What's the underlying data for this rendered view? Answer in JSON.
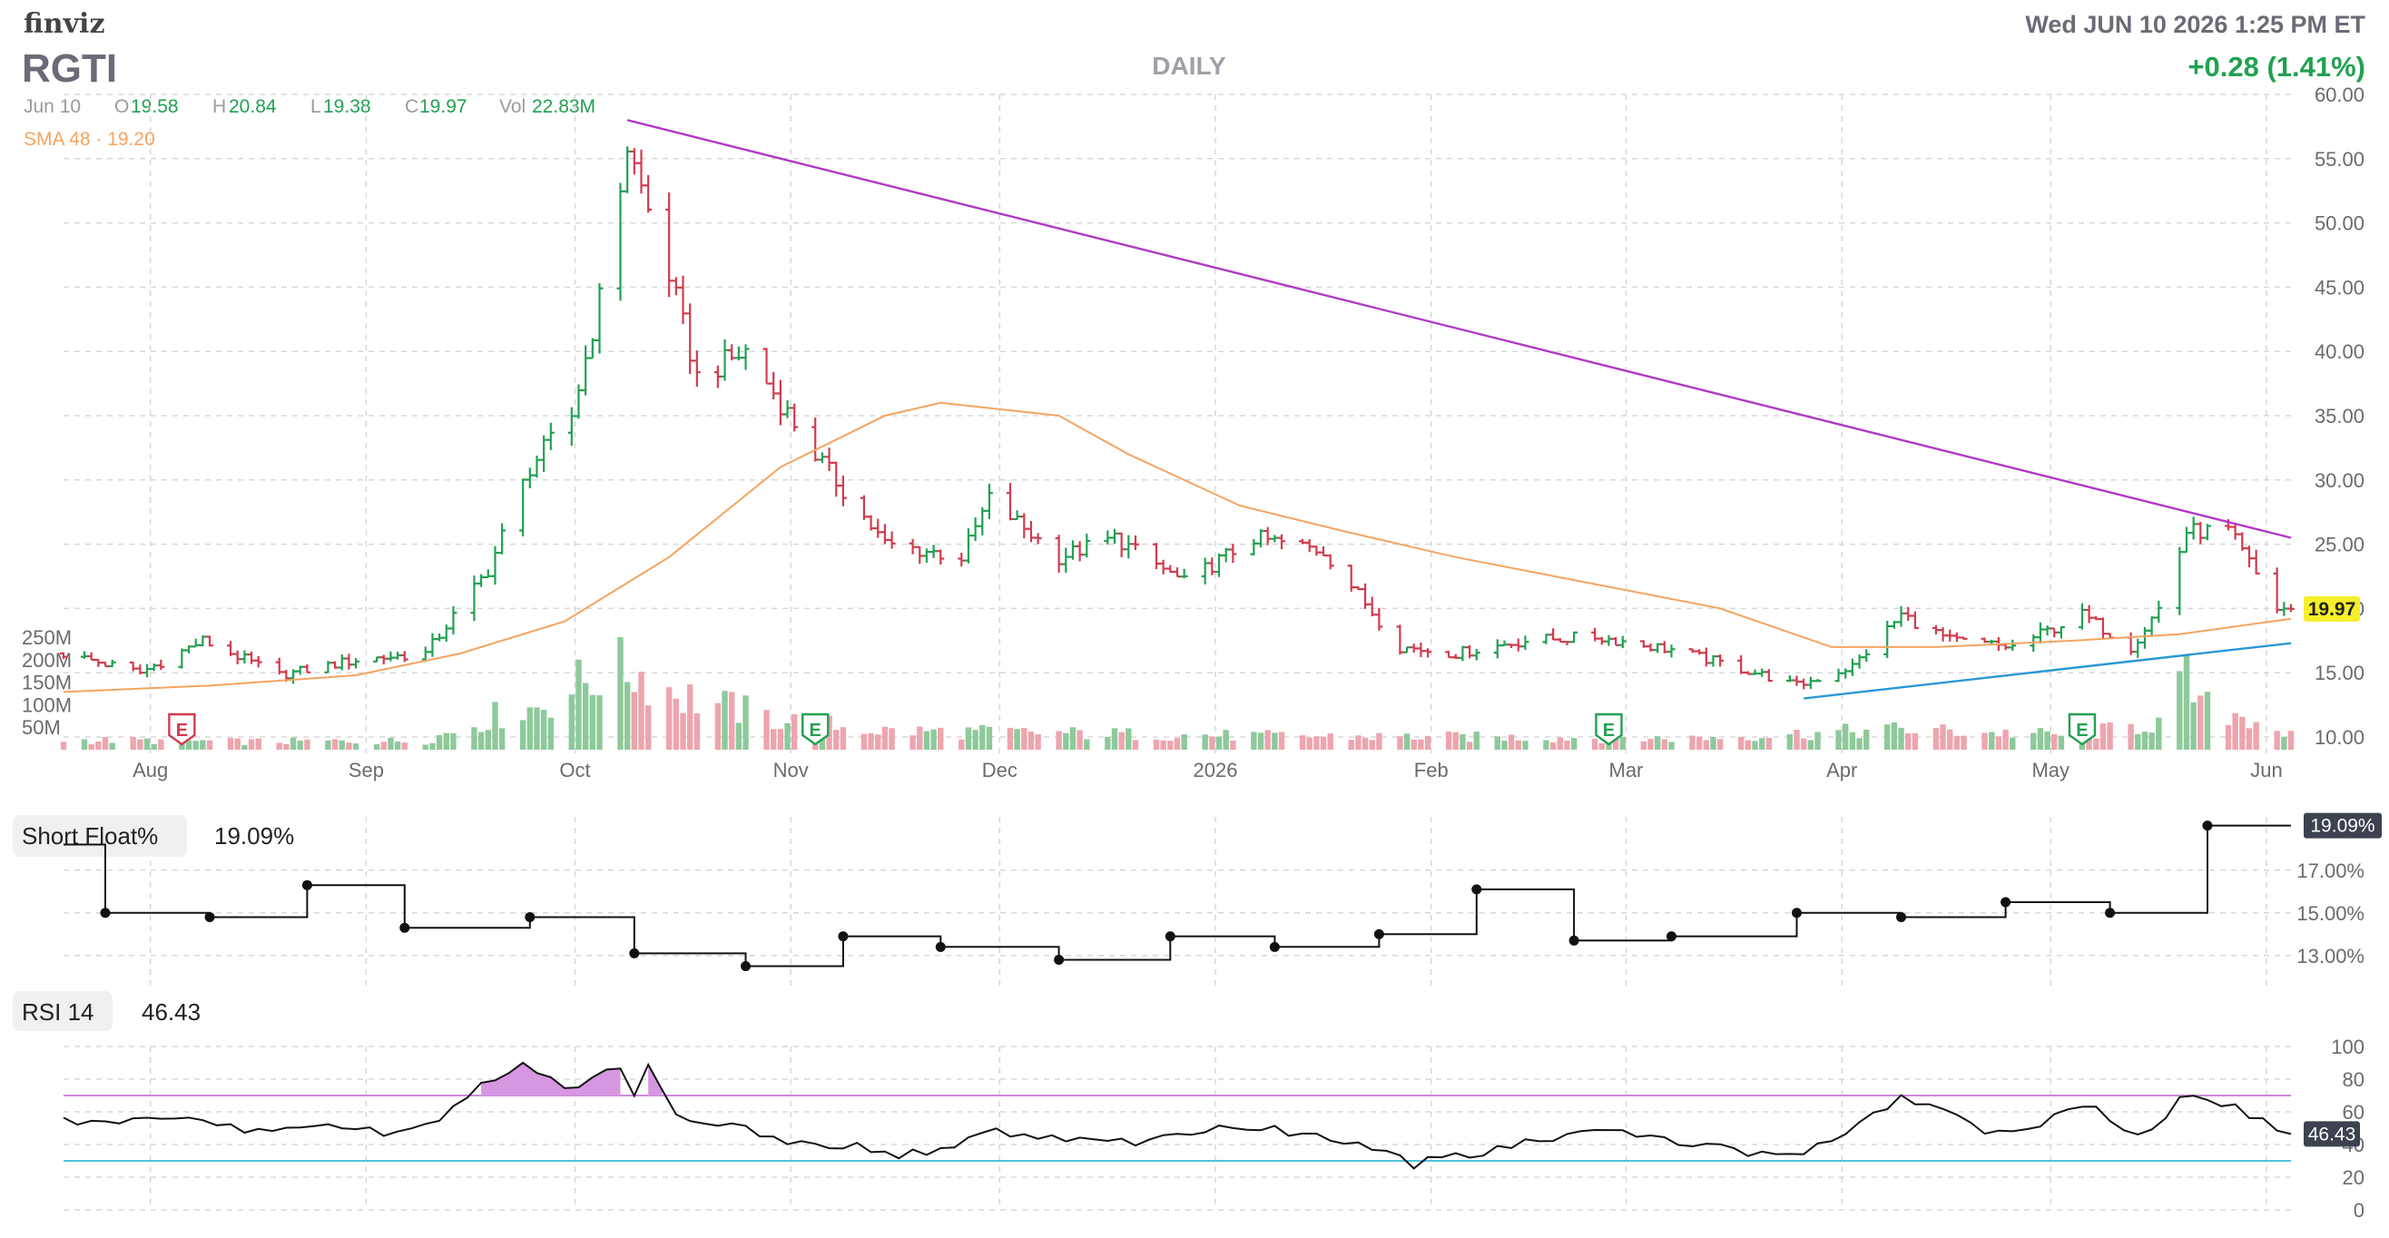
{
  "header": {
    "brand": "finviz",
    "ticker": "RGTI",
    "timeframe": "DAILY",
    "datetime": "Wed JUN 10 2026 1:25 PM ET",
    "change": "+0.28 (1.41%)",
    "ohlc": {
      "date": "Jun 10",
      "open_label": "O",
      "open": "19.58",
      "high_label": "H",
      "high": "20.84",
      "low_label": "L",
      "low": "19.38",
      "close_label": "C",
      "close": "19.97",
      "vol_label": "Vol",
      "vol": "22.83M"
    },
    "sma_label": "SMA 48 · 19.20"
  },
  "colors": {
    "up": "#22a052",
    "down": "#d23b4e",
    "vol_up": "#8ec99b",
    "vol_down": "#eda5ae",
    "sma": "#f4a460",
    "trend_down": "#b03ac6",
    "trend_up": "#2b97d6",
    "grid": "#d8d8d8",
    "axis_text": "#6b6b6b",
    "change": "#22a052",
    "price_badge": "#f6ef2b",
    "rsi_fill": "#d597df",
    "rsi_upper": "#cc8bd9",
    "rsi_lower": "#4fc3d7"
  },
  "chart_data": [
    {
      "type": "candlestick",
      "title": "RGTI",
      "subtitle": "DAILY",
      "x_labels": [
        "Aug",
        "Sep",
        "Oct",
        "Nov",
        "Dec",
        "2026",
        "Feb",
        "Mar",
        "Apr",
        "May",
        "Jun"
      ],
      "y_ticks": [
        "60.00",
        "55.00",
        "50.00",
        "45.00",
        "40.00",
        "35.00",
        "30.00",
        "25.00",
        "20.00",
        "15.00",
        "10.00"
      ],
      "ylim": [
        10,
        60
      ],
      "y_log_scale": false,
      "last_price": "19.97",
      "earnings_markers": [
        {
          "month": "Aug",
          "label": "E",
          "color": "#d23b4e"
        },
        {
          "month": "Nov",
          "label": "E",
          "color": "#22a052"
        },
        {
          "month": "Mar",
          "label": "E",
          "color": "#22a052"
        },
        {
          "month": "May",
          "label": "E",
          "color": "#22a052"
        }
      ],
      "price_path": [
        [
          "2025-07-25",
          16.5
        ],
        [
          "2025-08-05",
          15.0
        ],
        [
          "2025-08-14",
          17.5
        ],
        [
          "2025-08-25",
          14.8
        ],
        [
          "2025-09-05",
          16.0
        ],
        [
          "2025-09-15",
          16.5
        ],
        [
          "2025-09-24",
          23.0
        ],
        [
          "2025-09-30",
          31.0
        ],
        [
          "2025-10-06",
          35.0
        ],
        [
          "2025-10-10",
          44.0
        ],
        [
          "2025-10-14",
          56.0
        ],
        [
          "2025-10-20",
          46.0
        ],
        [
          "2025-10-24",
          38.0
        ],
        [
          "2025-10-31",
          40.0
        ],
        [
          "2025-11-10",
          32.0
        ],
        [
          "2025-11-20",
          25.0
        ],
        [
          "2025-12-01",
          24.0
        ],
        [
          "2025-12-05",
          28.5
        ],
        [
          "2025-12-15",
          24.0
        ],
        [
          "2025-12-23",
          25.5
        ],
        [
          "2026-01-02",
          22.0
        ],
        [
          "2026-01-12",
          25.5
        ],
        [
          "2026-01-22",
          24.5
        ],
        [
          "2026-02-02",
          17.0
        ],
        [
          "2026-02-10",
          16.5
        ],
        [
          "2026-02-20",
          17.5
        ],
        [
          "2026-03-02",
          17.8
        ],
        [
          "2026-03-13",
          16.8
        ],
        [
          "2026-03-25",
          15.0
        ],
        [
          "2026-03-31",
          14.0
        ],
        [
          "2026-04-08",
          15.5
        ],
        [
          "2026-04-15",
          19.5
        ],
        [
          "2026-04-22",
          17.5
        ],
        [
          "2026-05-01",
          17.0
        ],
        [
          "2026-05-11",
          19.5
        ],
        [
          "2026-05-18",
          17.0
        ],
        [
          "2026-05-22",
          20.0
        ],
        [
          "2026-05-26",
          26.0
        ],
        [
          "2026-06-01",
          26.0
        ],
        [
          "2026-06-04",
          23.5
        ],
        [
          "2026-06-08",
          20.0
        ],
        [
          "2026-06-10",
          19.97
        ]
      ],
      "sma_48": {
        "label": "SMA 48",
        "value": "19.20",
        "path": [
          [
            "2025-07-25",
            13.5
          ],
          [
            "2025-08-15",
            14.0
          ],
          [
            "2025-09-05",
            14.8
          ],
          [
            "2025-09-20",
            16.5
          ],
          [
            "2025-10-05",
            19.0
          ],
          [
            "2025-10-20",
            24.0
          ],
          [
            "2025-11-05",
            31.0
          ],
          [
            "2025-11-20",
            35.0
          ],
          [
            "2025-11-28",
            36.0
          ],
          [
            "2025-12-15",
            35.0
          ],
          [
            "2025-12-25",
            32.0
          ],
          [
            "2026-01-10",
            28.0
          ],
          [
            "2026-01-25",
            26.0
          ],
          [
            "2026-02-10",
            24.0
          ],
          [
            "2026-03-01",
            22.0
          ],
          [
            "2026-03-20",
            20.0
          ],
          [
            "2026-04-05",
            17.0
          ],
          [
            "2026-04-20",
            17.0
          ],
          [
            "2026-05-10",
            17.5
          ],
          [
            "2026-05-25",
            18.0
          ],
          [
            "2026-06-10",
            19.2
          ]
        ]
      },
      "trendlines": [
        {
          "color_key": "trend_down",
          "from": [
            "2025-10-14",
            58.0
          ],
          "to": [
            "2026-06-10",
            25.5
          ]
        },
        {
          "color_key": "trend_up",
          "from": [
            "2026-04-01",
            13.0
          ],
          "to": [
            "2026-06-10",
            17.3
          ]
        }
      ],
      "volume": {
        "y_ticks": [
          "250M",
          "200M",
          "150M",
          "100M",
          "50M"
        ],
        "ylim": [
          0,
          250
        ],
        "unit": "M",
        "path": [
          [
            "2025-07-25",
            22
          ],
          [
            "2025-08-20",
            18
          ],
          [
            "2025-09-15",
            20
          ],
          [
            "2025-09-25",
            75
          ],
          [
            "2025-10-01",
            95
          ],
          [
            "2025-10-10",
            170
          ],
          [
            "2025-10-15",
            178
          ],
          [
            "2025-10-22",
            120
          ],
          [
            "2025-11-05",
            65
          ],
          [
            "2025-11-20",
            42
          ],
          [
            "2025-12-10",
            38
          ],
          [
            "2026-01-15",
            30
          ],
          [
            "2026-02-15",
            28
          ],
          [
            "2026-03-15",
            25
          ],
          [
            "2026-04-15",
            45
          ],
          [
            "2026-05-10",
            32
          ],
          [
            "2026-05-22",
            60
          ],
          [
            "2026-05-26",
            150
          ],
          [
            "2026-05-28",
            95
          ],
          [
            "2026-06-05",
            72
          ],
          [
            "2026-06-10",
            30
          ]
        ]
      }
    },
    {
      "type": "line",
      "step": true,
      "name": "Short Float%",
      "value": "19.09%",
      "y_ticks": [
        "17.00%",
        "15.00%",
        "13.00%"
      ],
      "ylim": [
        11.5,
        19.5
      ],
      "points": [
        [
          "2025-07-25",
          18.2
        ],
        [
          "2025-07-31",
          15.0
        ],
        [
          "2025-08-15",
          14.8
        ],
        [
          "2025-08-29",
          16.3
        ],
        [
          "2025-09-12",
          14.3
        ],
        [
          "2025-09-30",
          14.8
        ],
        [
          "2025-10-15",
          13.1
        ],
        [
          "2025-10-31",
          12.5
        ],
        [
          "2025-11-14",
          13.9
        ],
        [
          "2025-11-28",
          13.4
        ],
        [
          "2025-12-15",
          12.8
        ],
        [
          "2025-12-31",
          13.9
        ],
        [
          "2026-01-15",
          13.4
        ],
        [
          "2026-01-30",
          14.0
        ],
        [
          "2026-02-13",
          16.1
        ],
        [
          "2026-02-27",
          13.7
        ],
        [
          "2026-03-13",
          13.9
        ],
        [
          "2026-03-31",
          15.0
        ],
        [
          "2026-04-15",
          14.8
        ],
        [
          "2026-04-30",
          15.5
        ],
        [
          "2026-05-15",
          15.0
        ],
        [
          "2026-05-29",
          19.09
        ],
        [
          "2026-06-10",
          19.09
        ]
      ]
    },
    {
      "type": "line",
      "name": "RSI 14",
      "value": "46.43",
      "y_ticks": [
        "100",
        "80",
        "60",
        "40",
        "20",
        "0"
      ],
      "ylim": [
        0,
        100
      ],
      "overbought": 70,
      "oversold": 30,
      "points": [
        [
          "2025-07-25",
          55
        ],
        [
          "2025-08-01",
          52
        ],
        [
          "2025-08-08",
          58
        ],
        [
          "2025-08-15",
          54
        ],
        [
          "2025-08-22",
          47
        ],
        [
          "2025-08-29",
          53
        ],
        [
          "2025-09-05",
          50
        ],
        [
          "2025-09-12",
          46
        ],
        [
          "2025-09-19",
          62
        ],
        [
          "2025-09-23",
          75
        ],
        [
          "2025-09-26",
          85
        ],
        [
          "2025-09-30",
          88
        ],
        [
          "2025-10-03",
          80
        ],
        [
          "2025-10-06",
          74
        ],
        [
          "2025-10-09",
          84
        ],
        [
          "2025-10-13",
          87
        ],
        [
          "2025-10-15",
          72
        ],
        [
          "2025-10-17",
          86
        ],
        [
          "2025-10-20",
          65
        ],
        [
          "2025-10-24",
          50
        ],
        [
          "2025-10-31",
          52
        ],
        [
          "2025-11-05",
          42
        ],
        [
          "2025-11-14",
          40
        ],
        [
          "2025-11-21",
          34
        ],
        [
          "2025-11-28",
          36
        ],
        [
          "2025-12-05",
          50
        ],
        [
          "2025-12-12",
          42
        ],
        [
          "2025-12-19",
          45
        ],
        [
          "2025-12-26",
          41
        ],
        [
          "2026-01-05",
          48
        ],
        [
          "2026-01-12",
          51
        ],
        [
          "2026-01-20",
          46
        ],
        [
          "2026-01-28",
          38
        ],
        [
          "2026-02-04",
          28
        ],
        [
          "2026-02-11",
          33
        ],
        [
          "2026-02-18",
          38
        ],
        [
          "2026-02-25",
          46
        ],
        [
          "2026-03-04",
          49
        ],
        [
          "2026-03-11",
          43
        ],
        [
          "2026-03-18",
          40
        ],
        [
          "2026-03-25",
          34
        ],
        [
          "2026-04-01",
          34
        ],
        [
          "2026-04-08",
          50
        ],
        [
          "2026-04-15",
          68
        ],
        [
          "2026-04-20",
          62
        ],
        [
          "2026-04-28",
          47
        ],
        [
          "2026-05-05",
          52
        ],
        [
          "2026-05-12",
          65
        ],
        [
          "2026-05-19",
          44
        ],
        [
          "2026-05-26",
          70
        ],
        [
          "2026-06-02",
          65
        ],
        [
          "2026-06-05",
          55
        ],
        [
          "2026-06-10",
          46.43
        ]
      ]
    }
  ]
}
